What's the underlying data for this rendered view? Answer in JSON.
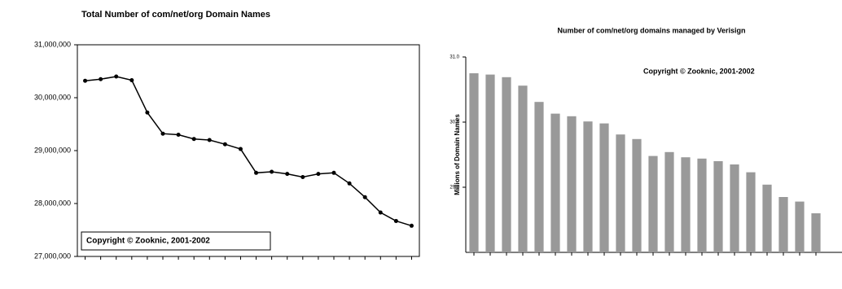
{
  "chart_data": [
    {
      "type": "line",
      "title": "Total Number of com/net/org Domain Names",
      "annotation": "Copyright © Zooknic, 2001-2002",
      "categories": [
        null,
        null,
        null,
        null,
        null,
        null,
        null,
        null,
        null,
        null,
        null,
        null,
        null,
        null,
        null,
        null,
        null,
        null,
        null,
        null,
        null,
        null
      ],
      "values": [
        30320000,
        30350000,
        30400000,
        30330000,
        29720000,
        29320000,
        29300000,
        29220000,
        29200000,
        29120000,
        29030000,
        28580000,
        28600000,
        28560000,
        28500000,
        28560000,
        28580000,
        28380000,
        28120000,
        27830000,
        27670000,
        27580000
      ],
      "color": "#000000",
      "ylim": [
        27000000,
        31000000
      ],
      "yticks": [
        {
          "value": 27000000,
          "label": "27,000,000"
        },
        {
          "value": 28000000,
          "label": "28,000,000"
        },
        {
          "value": 29000000,
          "label": "29,000,000"
        },
        {
          "value": 30000000,
          "label": "30,000,000"
        },
        {
          "value": 31000000,
          "label": "31,000,000"
        }
      ]
    },
    {
      "type": "bar",
      "title": "Number of com/net/org domains managed by Verisign",
      "annotation": "Copyright © Zooknic, 2001-2002",
      "ylabel": "Millions of Domain Names",
      "categories": [
        null,
        null,
        null,
        null,
        null,
        null,
        null,
        null,
        null,
        null,
        null,
        null,
        null,
        null,
        null,
        null,
        null,
        null,
        null,
        null,
        null,
        null
      ],
      "values": [
        30.75,
        30.73,
        30.69,
        30.56,
        30.31,
        30.13,
        30.09,
        30.01,
        29.98,
        29.81,
        29.74,
        29.48,
        29.54,
        29.46,
        29.44,
        29.4,
        29.35,
        29.23,
        29.04,
        28.85,
        28.78,
        28.6
      ],
      "color": "#999999",
      "ylim": [
        28,
        31
      ],
      "yticks": [
        {
          "value": 29,
          "label": "29.0"
        },
        {
          "value": 30,
          "label": "30.0"
        },
        {
          "value": 31,
          "label": "31.0"
        }
      ]
    }
  ]
}
